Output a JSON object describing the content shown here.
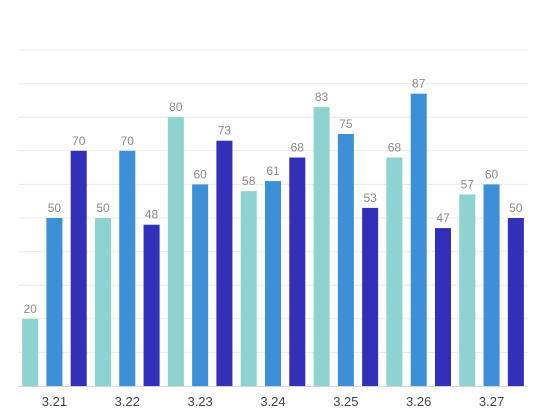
{
  "chart_data": {
    "type": "bar",
    "categories": [
      "3.21",
      "3.22",
      "3.23",
      "3.24",
      "3.25",
      "3.26",
      "3.27"
    ],
    "series": [
      {
        "values": [
          20,
          50,
          80,
          58,
          83,
          68,
          57
        ],
        "color": "#8ed3d2"
      },
      {
        "values": [
          50,
          70,
          60,
          61,
          75,
          87,
          60
        ],
        "color": "#3d8fd6"
      },
      {
        "values": [
          70,
          48,
          73,
          68,
          53,
          47,
          50
        ],
        "color": "#3330b8"
      }
    ],
    "ylim": [
      0,
      100
    ],
    "y_grid_step": 10,
    "grid": true,
    "data_labels": true,
    "title": "",
    "xlabel": "",
    "ylabel": ""
  }
}
